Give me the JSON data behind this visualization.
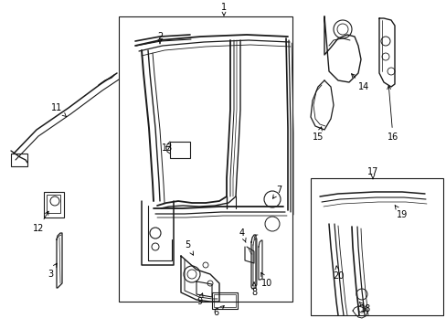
{
  "bg_color": "#ffffff",
  "line_color": "#1a1a1a",
  "fig_width": 4.89,
  "fig_height": 3.6,
  "dpi": 100,
  "font_size": 7.0
}
